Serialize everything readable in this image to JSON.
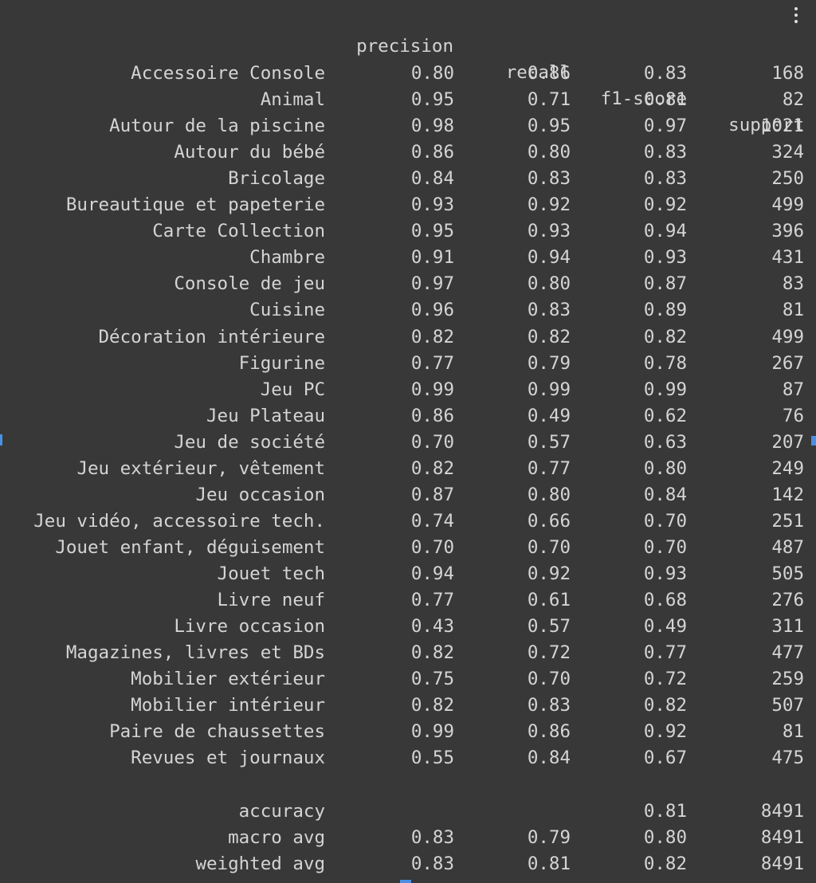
{
  "columns": {
    "precision": "precision",
    "recall": "recall",
    "f1": "f1-score",
    "support": "support"
  },
  "rows": [
    {
      "label": "Accessoire Console",
      "precision": "0.80",
      "recall": "0.86",
      "f1": "0.83",
      "support": "168"
    },
    {
      "label": "Animal",
      "precision": "0.95",
      "recall": "0.71",
      "f1": "0.81",
      "support": "82"
    },
    {
      "label": "Autour de la piscine",
      "precision": "0.98",
      "recall": "0.95",
      "f1": "0.97",
      "support": "1021"
    },
    {
      "label": "Autour du bébé",
      "precision": "0.86",
      "recall": "0.80",
      "f1": "0.83",
      "support": "324"
    },
    {
      "label": "Bricolage",
      "precision": "0.84",
      "recall": "0.83",
      "f1": "0.83",
      "support": "250"
    },
    {
      "label": "Bureautique et papeterie",
      "precision": "0.93",
      "recall": "0.92",
      "f1": "0.92",
      "support": "499"
    },
    {
      "label": "Carte Collection",
      "precision": "0.95",
      "recall": "0.93",
      "f1": "0.94",
      "support": "396"
    },
    {
      "label": "Chambre",
      "precision": "0.91",
      "recall": "0.94",
      "f1": "0.93",
      "support": "431"
    },
    {
      "label": "Console de jeu",
      "precision": "0.97",
      "recall": "0.80",
      "f1": "0.87",
      "support": "83"
    },
    {
      "label": "Cuisine",
      "precision": "0.96",
      "recall": "0.83",
      "f1": "0.89",
      "support": "81"
    },
    {
      "label": "Décoration intérieure",
      "precision": "0.82",
      "recall": "0.82",
      "f1": "0.82",
      "support": "499"
    },
    {
      "label": "Figurine",
      "precision": "0.77",
      "recall": "0.79",
      "f1": "0.78",
      "support": "267"
    },
    {
      "label": "Jeu PC",
      "precision": "0.99",
      "recall": "0.99",
      "f1": "0.99",
      "support": "87"
    },
    {
      "label": "Jeu Plateau",
      "precision": "0.86",
      "recall": "0.49",
      "f1": "0.62",
      "support": "76"
    },
    {
      "label": "Jeu de société",
      "precision": "0.70",
      "recall": "0.57",
      "f1": "0.63",
      "support": "207"
    },
    {
      "label": "Jeu extérieur, vêtement",
      "precision": "0.82",
      "recall": "0.77",
      "f1": "0.80",
      "support": "249"
    },
    {
      "label": "Jeu occasion",
      "precision": "0.87",
      "recall": "0.80",
      "f1": "0.84",
      "support": "142"
    },
    {
      "label": "Jeu vidéo, accessoire tech.",
      "precision": "0.74",
      "recall": "0.66",
      "f1": "0.70",
      "support": "251"
    },
    {
      "label": "Jouet enfant, déguisement",
      "precision": "0.70",
      "recall": "0.70",
      "f1": "0.70",
      "support": "487"
    },
    {
      "label": "Jouet tech",
      "precision": "0.94",
      "recall": "0.92",
      "f1": "0.93",
      "support": "505"
    },
    {
      "label": "Livre neuf",
      "precision": "0.77",
      "recall": "0.61",
      "f1": "0.68",
      "support": "276"
    },
    {
      "label": "Livre occasion",
      "precision": "0.43",
      "recall": "0.57",
      "f1": "0.49",
      "support": "311"
    },
    {
      "label": "Magazines, livres et BDs",
      "precision": "0.82",
      "recall": "0.72",
      "f1": "0.77",
      "support": "477"
    },
    {
      "label": "Mobilier extérieur",
      "precision": "0.75",
      "recall": "0.70",
      "f1": "0.72",
      "support": "259"
    },
    {
      "label": "Mobilier intérieur",
      "precision": "0.82",
      "recall": "0.83",
      "f1": "0.82",
      "support": "507"
    },
    {
      "label": "Paire de chaussettes",
      "precision": "0.99",
      "recall": "0.86",
      "f1": "0.92",
      "support": "81"
    },
    {
      "label": "Revues et journaux",
      "precision": "0.55",
      "recall": "0.84",
      "f1": "0.67",
      "support": "475"
    }
  ],
  "summary": [
    {
      "label": "accuracy",
      "precision": "",
      "recall": "",
      "f1": "0.81",
      "support": "8491"
    },
    {
      "label": "macro avg",
      "precision": "0.83",
      "recall": "0.79",
      "f1": "0.80",
      "support": "8491"
    },
    {
      "label": "weighted avg",
      "precision": "0.83",
      "recall": "0.81",
      "f1": "0.82",
      "support": "8491"
    }
  ],
  "colors": {
    "background": "#383838",
    "text": "#d4d4d4",
    "marker": "#4a90e2"
  },
  "icons": {
    "menu": "vertical-dots-icon"
  }
}
